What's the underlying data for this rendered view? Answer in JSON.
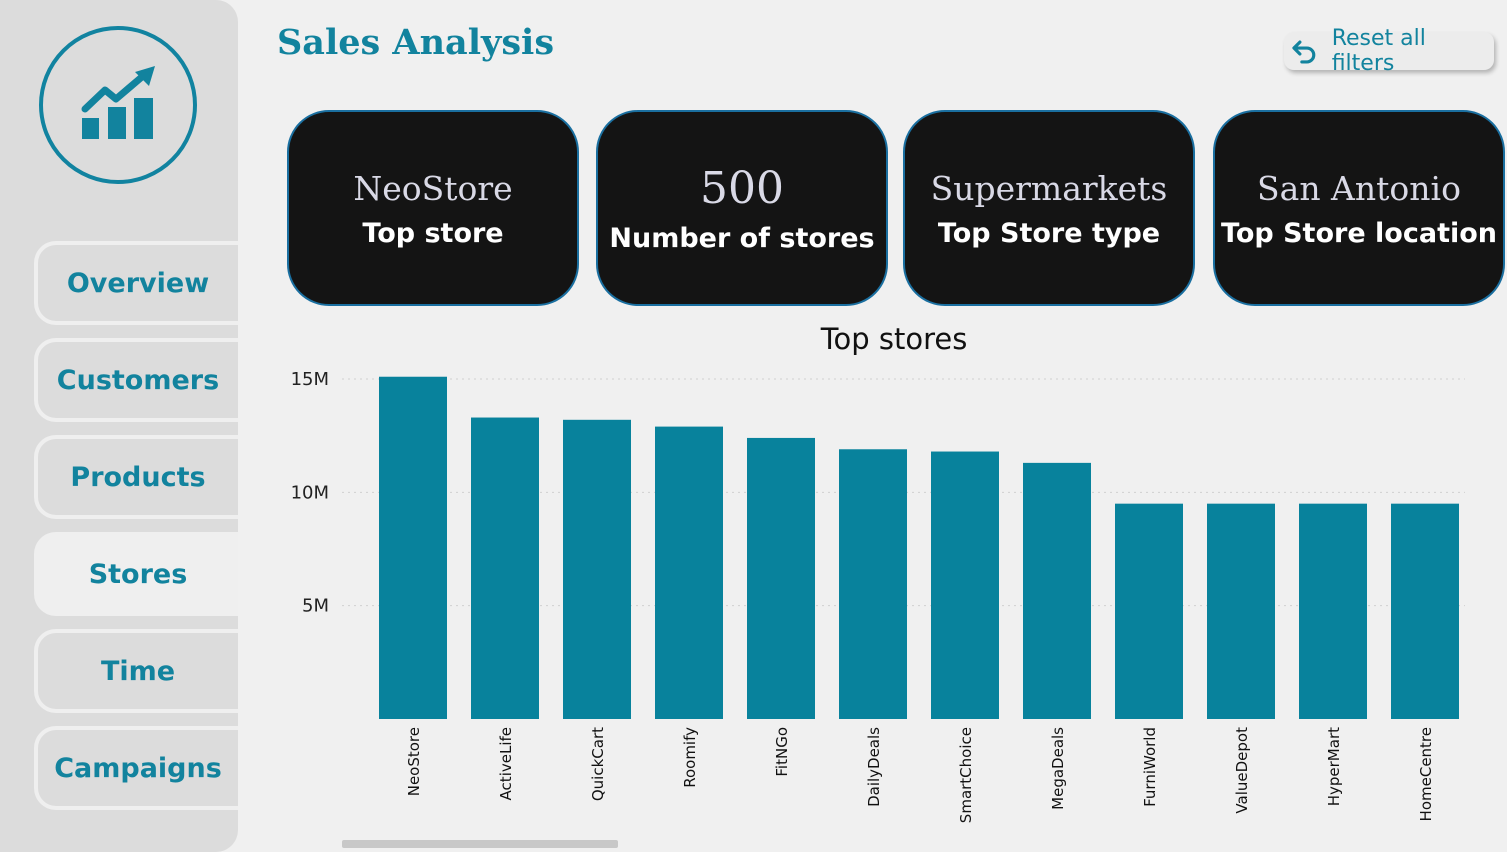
{
  "header": {
    "title": "Sales Analysis",
    "reset_label": "Reset all filters"
  },
  "sidebar": {
    "items": [
      {
        "label": "Overview",
        "active": false
      },
      {
        "label": "Customers",
        "active": false
      },
      {
        "label": "Products",
        "active": false
      },
      {
        "label": "Stores",
        "active": true
      },
      {
        "label": "Time",
        "active": false
      },
      {
        "label": "Campaigns",
        "active": false
      }
    ]
  },
  "kpis": [
    {
      "value": "NeoStore",
      "label": "Top store"
    },
    {
      "value": "500",
      "label": "Number of stores"
    },
    {
      "value": "Supermarkets",
      "label": "Top Store type"
    },
    {
      "value": "San Antonio",
      "label": "Top Store location"
    }
  ],
  "colors": {
    "accent": "#12839e",
    "bar": "#08829c",
    "card_bg": "#141414",
    "card_border": "#1a6fa0",
    "sidebar_bg": "#dcdcdc",
    "page_bg": "#f0f0f0"
  },
  "icons": {
    "logo": "growth-chart-icon",
    "reset": "undo-arrow-icon"
  },
  "chart_data": {
    "type": "bar",
    "title": "Top stores",
    "categories": [
      "NeoStore",
      "ActiveLife",
      "QuickCart",
      "Roomify",
      "FitNGo",
      "DailyDeals",
      "SmartChoice",
      "MegaDeals",
      "FurniWorld",
      "ValueDepot",
      "HyperMart",
      "HomeCentre"
    ],
    "values": [
      15.1,
      13.3,
      13.2,
      12.9,
      12.4,
      11.9,
      11.8,
      11.3,
      9.5,
      9.5,
      9.5,
      9.5
    ],
    "unit": "M",
    "ylim": [
      0,
      15
    ],
    "yticks": [
      {
        "value": 5,
        "label": "5M"
      },
      {
        "value": 10,
        "label": "10M"
      },
      {
        "value": 15,
        "label": "15M"
      }
    ],
    "grid": true,
    "legend": "none"
  }
}
